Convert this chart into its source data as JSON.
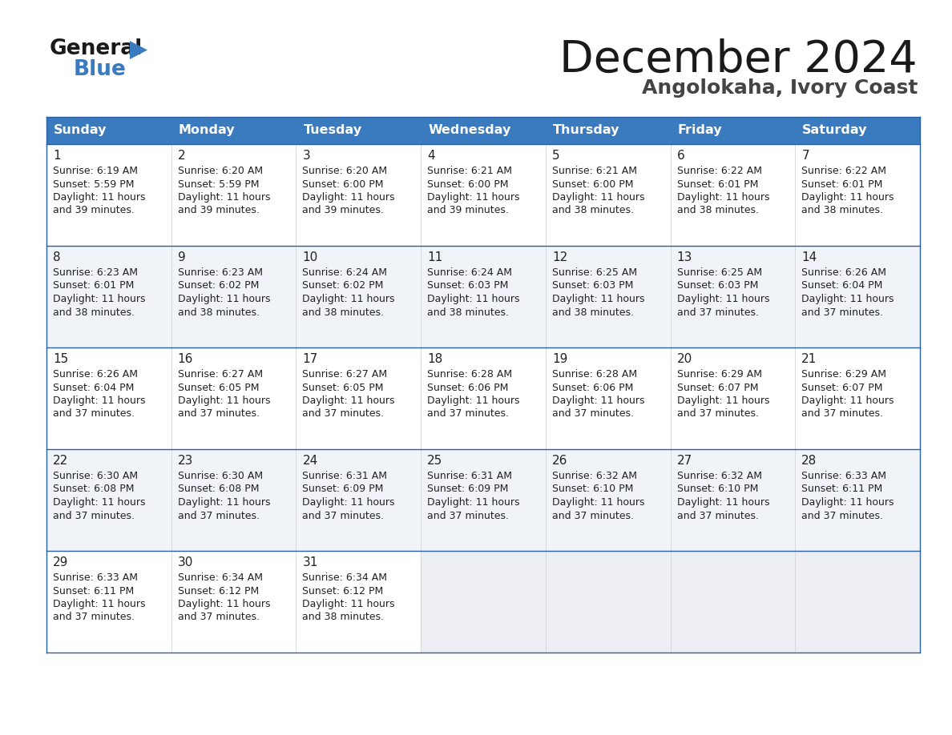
{
  "title": "December 2024",
  "subtitle": "Angolokaha, Ivory Coast",
  "header_bg": "#3a7abf",
  "header_text": "#ffffff",
  "row_bg_even": "#ffffff",
  "row_bg_odd": "#f0f4f8",
  "last_row_bg": "#eeeff4",
  "text_color": "#222222",
  "border_color": "#2a5fa0",
  "days_of_week": [
    "Sunday",
    "Monday",
    "Tuesday",
    "Wednesday",
    "Thursday",
    "Friday",
    "Saturday"
  ],
  "calendar": [
    [
      {
        "day": 1,
        "sunrise": "6:19 AM",
        "sunset": "5:59 PM",
        "daylight_hours": 11,
        "daylight_min": 39
      },
      {
        "day": 2,
        "sunrise": "6:20 AM",
        "sunset": "5:59 PM",
        "daylight_hours": 11,
        "daylight_min": 39
      },
      {
        "day": 3,
        "sunrise": "6:20 AM",
        "sunset": "6:00 PM",
        "daylight_hours": 11,
        "daylight_min": 39
      },
      {
        "day": 4,
        "sunrise": "6:21 AM",
        "sunset": "6:00 PM",
        "daylight_hours": 11,
        "daylight_min": 39
      },
      {
        "day": 5,
        "sunrise": "6:21 AM",
        "sunset": "6:00 PM",
        "daylight_hours": 11,
        "daylight_min": 38
      },
      {
        "day": 6,
        "sunrise": "6:22 AM",
        "sunset": "6:01 PM",
        "daylight_hours": 11,
        "daylight_min": 38
      },
      {
        "day": 7,
        "sunrise": "6:22 AM",
        "sunset": "6:01 PM",
        "daylight_hours": 11,
        "daylight_min": 38
      }
    ],
    [
      {
        "day": 8,
        "sunrise": "6:23 AM",
        "sunset": "6:01 PM",
        "daylight_hours": 11,
        "daylight_min": 38
      },
      {
        "day": 9,
        "sunrise": "6:23 AM",
        "sunset": "6:02 PM",
        "daylight_hours": 11,
        "daylight_min": 38
      },
      {
        "day": 10,
        "sunrise": "6:24 AM",
        "sunset": "6:02 PM",
        "daylight_hours": 11,
        "daylight_min": 38
      },
      {
        "day": 11,
        "sunrise": "6:24 AM",
        "sunset": "6:03 PM",
        "daylight_hours": 11,
        "daylight_min": 38
      },
      {
        "day": 12,
        "sunrise": "6:25 AM",
        "sunset": "6:03 PM",
        "daylight_hours": 11,
        "daylight_min": 38
      },
      {
        "day": 13,
        "sunrise": "6:25 AM",
        "sunset": "6:03 PM",
        "daylight_hours": 11,
        "daylight_min": 37
      },
      {
        "day": 14,
        "sunrise": "6:26 AM",
        "sunset": "6:04 PM",
        "daylight_hours": 11,
        "daylight_min": 37
      }
    ],
    [
      {
        "day": 15,
        "sunrise": "6:26 AM",
        "sunset": "6:04 PM",
        "daylight_hours": 11,
        "daylight_min": 37
      },
      {
        "day": 16,
        "sunrise": "6:27 AM",
        "sunset": "6:05 PM",
        "daylight_hours": 11,
        "daylight_min": 37
      },
      {
        "day": 17,
        "sunrise": "6:27 AM",
        "sunset": "6:05 PM",
        "daylight_hours": 11,
        "daylight_min": 37
      },
      {
        "day": 18,
        "sunrise": "6:28 AM",
        "sunset": "6:06 PM",
        "daylight_hours": 11,
        "daylight_min": 37
      },
      {
        "day": 19,
        "sunrise": "6:28 AM",
        "sunset": "6:06 PM",
        "daylight_hours": 11,
        "daylight_min": 37
      },
      {
        "day": 20,
        "sunrise": "6:29 AM",
        "sunset": "6:07 PM",
        "daylight_hours": 11,
        "daylight_min": 37
      },
      {
        "day": 21,
        "sunrise": "6:29 AM",
        "sunset": "6:07 PM",
        "daylight_hours": 11,
        "daylight_min": 37
      }
    ],
    [
      {
        "day": 22,
        "sunrise": "6:30 AM",
        "sunset": "6:08 PM",
        "daylight_hours": 11,
        "daylight_min": 37
      },
      {
        "day": 23,
        "sunrise": "6:30 AM",
        "sunset": "6:08 PM",
        "daylight_hours": 11,
        "daylight_min": 37
      },
      {
        "day": 24,
        "sunrise": "6:31 AM",
        "sunset": "6:09 PM",
        "daylight_hours": 11,
        "daylight_min": 37
      },
      {
        "day": 25,
        "sunrise": "6:31 AM",
        "sunset": "6:09 PM",
        "daylight_hours": 11,
        "daylight_min": 37
      },
      {
        "day": 26,
        "sunrise": "6:32 AM",
        "sunset": "6:10 PM",
        "daylight_hours": 11,
        "daylight_min": 37
      },
      {
        "day": 27,
        "sunrise": "6:32 AM",
        "sunset": "6:10 PM",
        "daylight_hours": 11,
        "daylight_min": 37
      },
      {
        "day": 28,
        "sunrise": "6:33 AM",
        "sunset": "6:11 PM",
        "daylight_hours": 11,
        "daylight_min": 37
      }
    ],
    [
      {
        "day": 29,
        "sunrise": "6:33 AM",
        "sunset": "6:11 PM",
        "daylight_hours": 11,
        "daylight_min": 37
      },
      {
        "day": 30,
        "sunrise": "6:34 AM",
        "sunset": "6:12 PM",
        "daylight_hours": 11,
        "daylight_min": 37
      },
      {
        "day": 31,
        "sunrise": "6:34 AM",
        "sunset": "6:12 PM",
        "daylight_hours": 11,
        "daylight_min": 38
      },
      null,
      null,
      null,
      null
    ]
  ],
  "figsize": [
    11.88,
    9.18
  ],
  "dpi": 100
}
